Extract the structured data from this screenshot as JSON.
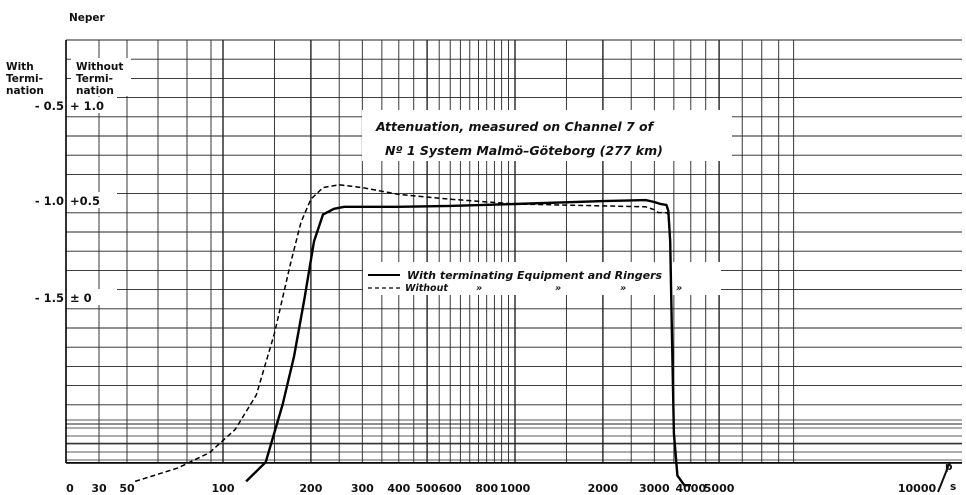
{
  "chart_data": {
    "type": "line",
    "unit_label": "Neper",
    "y_header_left": [
      "With",
      "Termi-",
      "nation"
    ],
    "y_header_right": [
      "Without",
      "Termi-",
      "nation"
    ],
    "y_ticks_with": [
      "- 0.5",
      "- 1.0",
      "- 1.5"
    ],
    "y_ticks_without": [
      "+ 1.0",
      "+0.5",
      "± 0"
    ],
    "x_ticks": [
      "0",
      "30",
      "50",
      "100",
      "200",
      "300",
      "400",
      "500",
      "600",
      "800",
      "1000",
      "2000",
      "3000",
      "4000",
      "5000",
      "10000"
    ],
    "x_unit_top": "p",
    "x_unit_bottom": "s",
    "annotation_line1": "Attenuation, measured on Channel 7 of",
    "annotation_line2": "Nº 1 System  Malmö–Göteborg (277 km)",
    "legend": {
      "with_label": "With terminating Equipment and Ringers",
      "without_label": "Without",
      "ditto_marks": [
        "»",
        "»",
        "»",
        "»"
      ]
    },
    "series": [
      {
        "name": "With terminating Equipment and Ringers",
        "style": "solid",
        "x": [
          120,
          140,
          160,
          175,
          190,
          205,
          220,
          240,
          260,
          300,
          400,
          600,
          1000,
          2000,
          2800,
          3000,
          3150,
          3300,
          3350,
          3400,
          3450,
          3500,
          3600,
          3800,
          4000
        ],
        "y": [
          2.45,
          2.35,
          2.05,
          1.8,
          1.5,
          1.2,
          1.06,
          1.03,
          1.02,
          1.02,
          1.02,
          1.015,
          1.005,
          0.99,
          0.985,
          0.995,
          1.005,
          1.01,
          1.04,
          1.2,
          1.7,
          2.2,
          2.42,
          2.47,
          2.47
        ]
      },
      {
        "name": "Without",
        "style": "dashed",
        "x": [
          50,
          70,
          90,
          110,
          130,
          150,
          170,
          185,
          200,
          220,
          250,
          300,
          400,
          600,
          1000,
          2000,
          2800,
          3000,
          3100,
          3300,
          3350,
          3400,
          3450,
          3500,
          3600,
          3800,
          4000
        ],
        "y": [
          2.45,
          2.38,
          2.3,
          2.18,
          2.0,
          1.68,
          1.32,
          1.1,
          0.98,
          0.92,
          0.905,
          0.92,
          0.955,
          0.98,
          1.005,
          1.015,
          1.02,
          1.035,
          1.05,
          1.05,
          1.06,
          1.2,
          1.7,
          2.2,
          2.42,
          2.47,
          2.47
        ]
      }
    ],
    "grid": true
  }
}
